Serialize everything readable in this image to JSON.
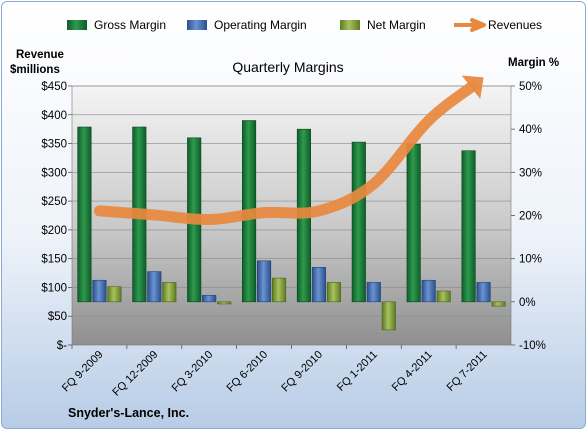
{
  "chart_data": {
    "type": "bar",
    "title": "Quarterly Margins",
    "company": "Snyder's-Lance, Inc.",
    "categories": [
      "FQ 9-2009",
      "FQ 12-2009",
      "FQ 3-2010",
      "FQ 6-2010",
      "FQ 9-2010",
      "FQ 1-2011",
      "FQ 4-2011",
      "FQ 7-2011"
    ],
    "left_axis": {
      "label_line1": "Revenue",
      "label_line2": "$millions",
      "range": [
        0,
        450
      ],
      "ticks": [
        0,
        50,
        100,
        150,
        200,
        250,
        300,
        350,
        400,
        450
      ],
      "tick_labels": [
        "$-",
        "$50",
        "$100",
        "$150",
        "$200",
        "$250",
        "$300",
        "$350",
        "$400",
        "$450"
      ]
    },
    "right_axis": {
      "label": "Margin %",
      "range": [
        -10,
        50
      ],
      "ticks": [
        -10,
        0,
        10,
        20,
        30,
        40,
        50
      ],
      "tick_labels": [
        "-10%",
        "0%",
        "10%",
        "20%",
        "30%",
        "40%",
        "50%"
      ]
    },
    "series": [
      {
        "name": "Gross Margin",
        "axis": "right",
        "type": "bar",
        "color": "#1e7a3c",
        "values": [
          40.5,
          40.5,
          38.0,
          42.0,
          40.0,
          37.0,
          36.5,
          35.0
        ]
      },
      {
        "name": "Operating Margin",
        "axis": "right",
        "type": "bar",
        "color": "#3f6db3",
        "values": [
          5.0,
          7.0,
          1.5,
          9.5,
          8.0,
          4.5,
          5.0,
          4.5
        ]
      },
      {
        "name": "Net Margin",
        "axis": "right",
        "type": "bar",
        "color": "#7d9c3a",
        "values": [
          3.5,
          4.5,
          -0.5,
          5.5,
          4.5,
          -6.5,
          2.5,
          -1.0
        ]
      },
      {
        "name": "Revenues",
        "axis": "left",
        "type": "line",
        "color": "#e8893e",
        "values": [
          233,
          226,
          218,
          230,
          233,
          280,
          390,
          465
        ]
      }
    ],
    "legend": "top",
    "grid": true
  }
}
